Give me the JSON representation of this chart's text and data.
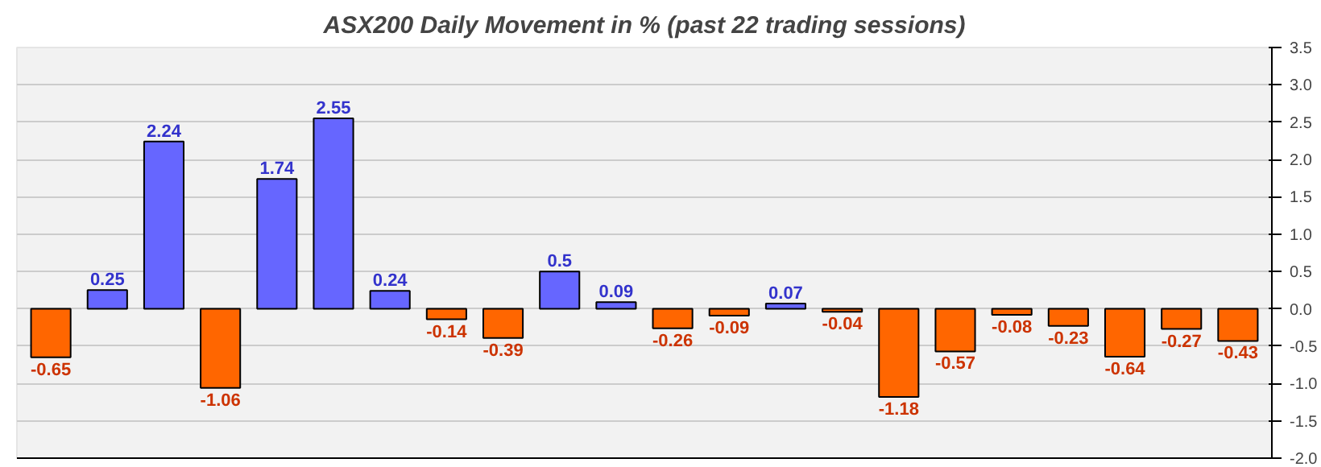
{
  "chart_data": {
    "type": "bar",
    "title": "ASX200 Daily Movement in % (past 22 trading sessions)",
    "categories": [
      null,
      null,
      null,
      null,
      null,
      null,
      null,
      null,
      null,
      null,
      null,
      null,
      null,
      null,
      null,
      null,
      null,
      null,
      null,
      null,
      null,
      null
    ],
    "values": [
      -0.65,
      0.25,
      2.24,
      -1.06,
      1.74,
      2.55,
      0.24,
      -0.14,
      -0.39,
      0.5,
      0.09,
      -0.26,
      -0.09,
      0.07,
      -0.04,
      -1.18,
      -0.57,
      -0.08,
      -0.23,
      -0.64,
      -0.27,
      -0.43
    ],
    "colors": [
      "#ff6600",
      "#6666ff",
      "#6666ff",
      "#ff6600",
      "#6666ff",
      "#6666ff",
      "#6666ff",
      "#ff6600",
      "#ff6600",
      "#6666ff",
      "#6666ff",
      "#ff6600",
      "#ff6600",
      "#6666ff",
      "#ff6600",
      "#ff6600",
      "#ff6600",
      "#ff6600",
      "#ff6600",
      "#ff6600",
      "#ff6600",
      "#ff6600"
    ],
    "ylim": [
      -2,
      3.5
    ],
    "yticks": [
      {
        "value": 3.5,
        "label": "3.5"
      },
      {
        "value": 3,
        "label": "3.0"
      },
      {
        "value": 2.5,
        "label": "2.5"
      },
      {
        "value": 2,
        "label": "2.0"
      },
      {
        "value": 1.5,
        "label": "1.5"
      },
      {
        "value": 1,
        "label": "1.0"
      },
      {
        "value": 0.5,
        "label": "0.5"
      },
      {
        "value": 0,
        "label": "0.0"
      },
      {
        "value": -0.5,
        "label": "-0.5"
      },
      {
        "value": -1,
        "label": "-1.0"
      },
      {
        "value": -1.5,
        "label": "-1.5"
      },
      {
        "value": -2,
        "label": "-2.0"
      }
    ],
    "grid": "y",
    "tick_labels": "y",
    "data_labels": true
  }
}
